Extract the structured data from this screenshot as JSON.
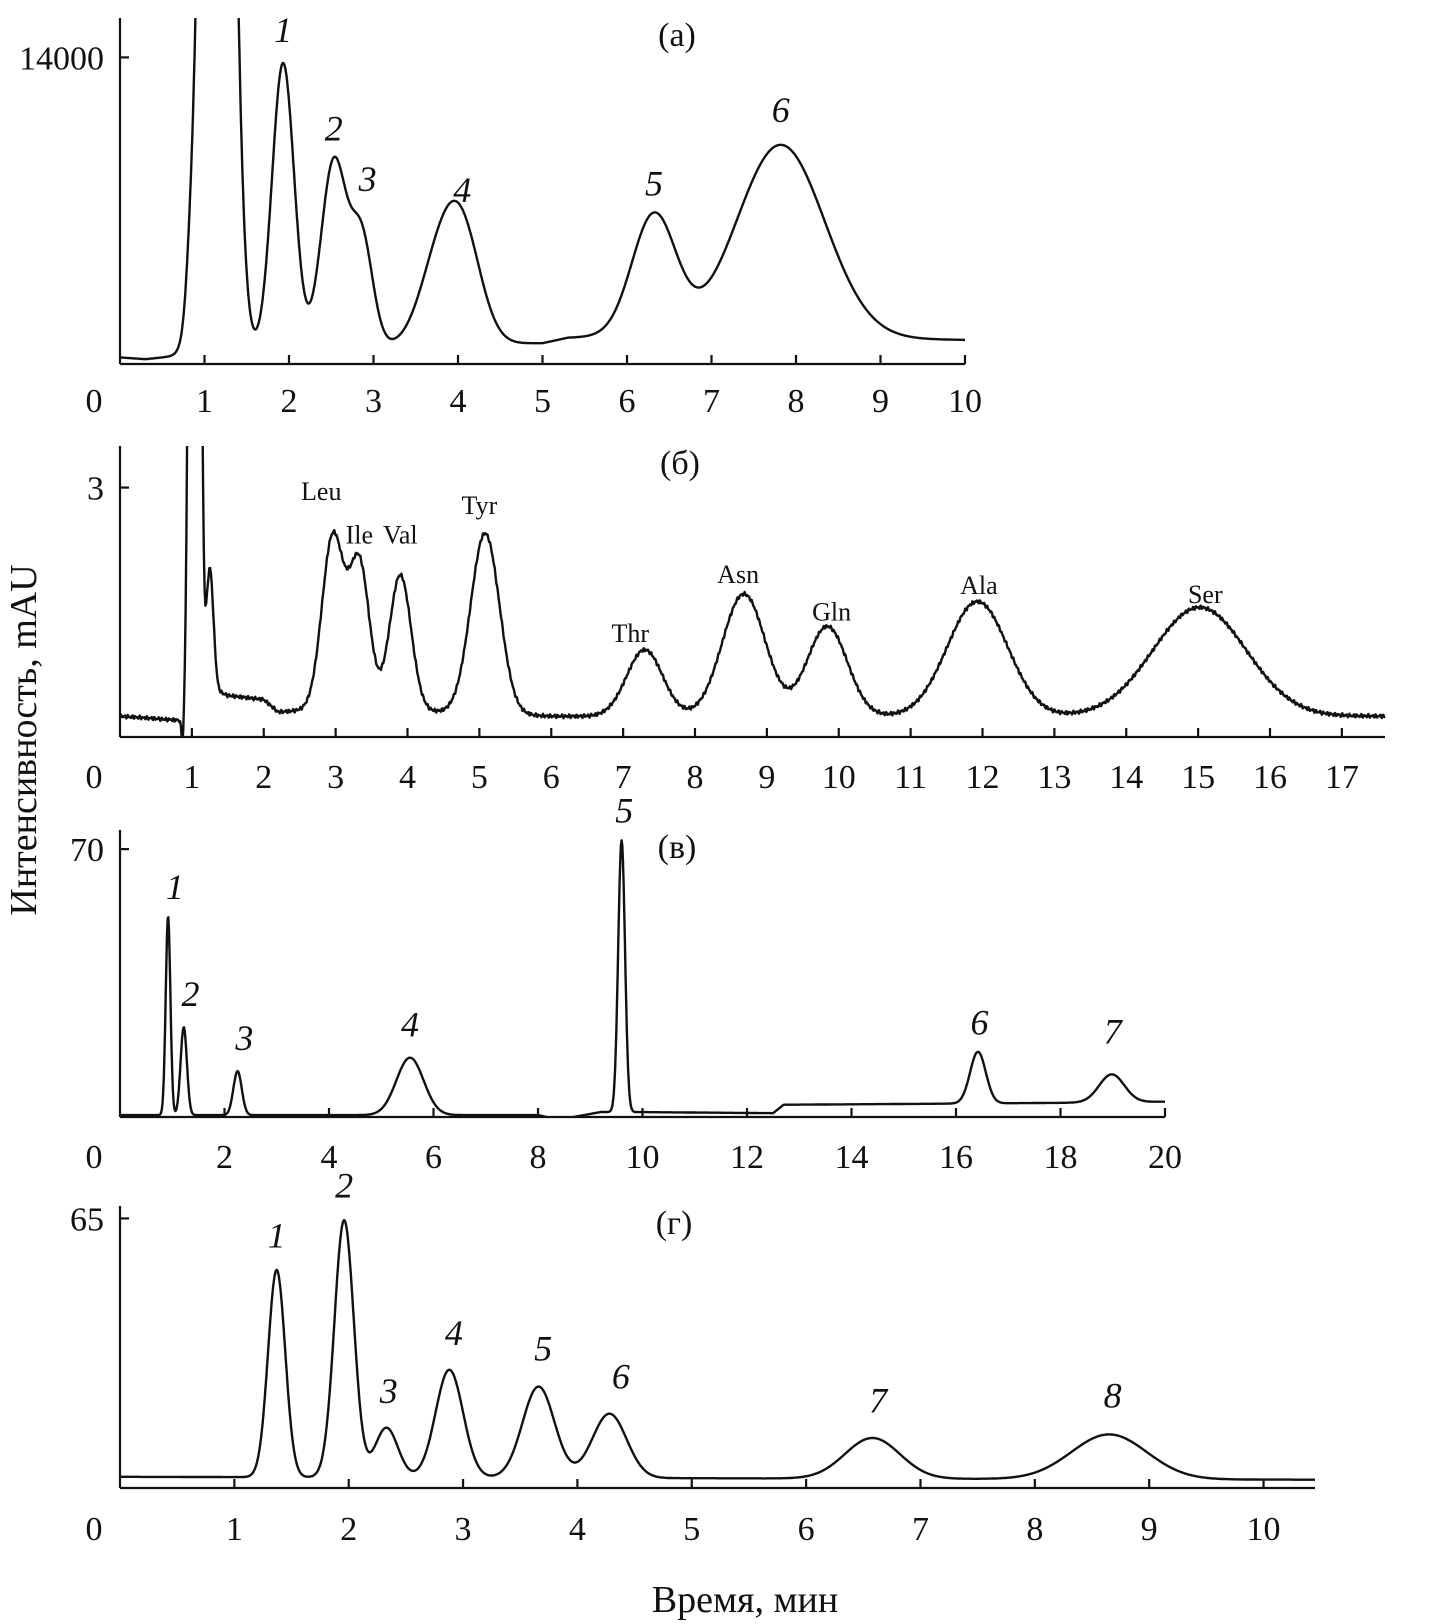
{
  "ylabel": "Интенсивность, mAU",
  "xlabel": "Время, мин",
  "chart_data": [
    {
      "type": "line",
      "panel_label": "(а)",
      "xlim": [
        0,
        10
      ],
      "ylim": [
        0,
        15800
      ],
      "x_ticks": [
        "0",
        "1",
        "2",
        "3",
        "4",
        "5",
        "6",
        "7",
        "8",
        "9",
        "10"
      ],
      "y_ticks": [
        {
          "value": 14000,
          "label": "14000"
        }
      ],
      "baseline": 300,
      "drift": [
        [
          0,
          0
        ],
        [
          0.3,
          -80
        ],
        [
          1.0,
          200
        ],
        [
          3.5,
          600
        ],
        [
          5.0,
          650
        ],
        [
          5.3,
          900
        ],
        [
          6.0,
          1000
        ],
        [
          10,
          800
        ]
      ],
      "peaks": [
        {
          "t": 0.83,
          "h": 1400,
          "w": 0.05
        },
        {
          "t": 1.15,
          "h": 80000,
          "w": 0.14
        },
        {
          "t": 1.93,
          "h": 13100,
          "w": 0.13
        },
        {
          "t": 2.53,
          "h": 8500,
          "w": 0.15
        },
        {
          "t": 2.86,
          "h": 4900,
          "w": 0.13
        },
        {
          "t": 3.75,
          "h": 3200,
          "w": 0.22
        },
        {
          "t": 4.05,
          "h": 4900,
          "w": 0.22
        },
        {
          "t": 6.32,
          "h": 5500,
          "w": 0.26
        },
        {
          "t": 7.82,
          "h": 8800,
          "w": 0.52
        }
      ],
      "annotations": [
        {
          "text": "1",
          "t": 1.93,
          "v": 14700
        },
        {
          "text": "2",
          "t": 2.53,
          "v": 10200
        },
        {
          "text": "3",
          "t": 2.93,
          "v": 7900
        },
        {
          "text": "4",
          "t": 4.05,
          "v": 7400
        },
        {
          "text": "5",
          "t": 6.32,
          "v": 7700
        },
        {
          "text": "6",
          "t": 7.82,
          "v": 11050
        }
      ]
    },
    {
      "type": "line",
      "panel_label": "(б)",
      "xlim": [
        0,
        17.6
      ],
      "ylim": [
        0,
        3.5
      ],
      "x_ticks": [
        "0",
        "1",
        "2",
        "3",
        "4",
        "5",
        "6",
        "7",
        "8",
        "9",
        "10",
        "11",
        "12",
        "13",
        "14",
        "15",
        "16",
        "17"
      ],
      "y_ticks": [
        {
          "value": 3,
          "label": "3"
        }
      ],
      "baseline": 0.25,
      "drift": [
        [
          0,
          0
        ],
        [
          0.85,
          -0.05
        ],
        [
          0.9,
          -0.05
        ],
        [
          1.2,
          0.35
        ],
        [
          1.5,
          0.25
        ],
        [
          2.0,
          0.2
        ],
        [
          2.2,
          0.05
        ],
        [
          3.0,
          0.1
        ],
        [
          6.0,
          0.0
        ],
        [
          9.0,
          0.0
        ],
        [
          13.0,
          0.0
        ],
        [
          17.6,
          0.0
        ]
      ],
      "peaks": [
        {
          "t": 0.87,
          "h": -0.3,
          "w": 0.015
        },
        {
          "t": 0.98,
          "h": 8.0,
          "w": 0.035
        },
        {
          "t": 1.1,
          "h": 8.0,
          "w": 0.035
        },
        {
          "t": 1.25,
          "h": 1.45,
          "w": 0.05
        },
        {
          "t": 2.96,
          "h": 2.06,
          "w": 0.15
        },
        {
          "t": 3.33,
          "h": 1.75,
          "w": 0.14
        },
        {
          "t": 3.9,
          "h": 1.63,
          "w": 0.15
        },
        {
          "t": 5.08,
          "h": 2.17,
          "w": 0.2
        },
        {
          "t": 7.3,
          "h": 0.8,
          "w": 0.25
        },
        {
          "t": 8.68,
          "h": 1.47,
          "w": 0.3
        },
        {
          "t": 9.84,
          "h": 1.08,
          "w": 0.28
        },
        {
          "t": 11.93,
          "h": 1.38,
          "w": 0.42
        },
        {
          "t": 15.02,
          "h": 1.31,
          "w": 0.65
        }
      ],
      "annotations": [
        {
          "text": "Leu",
          "t": 2.8,
          "v": 2.85
        },
        {
          "text": "Ile",
          "t": 3.33,
          "v": 2.33
        },
        {
          "text": "Val",
          "t": 3.9,
          "v": 2.33
        },
        {
          "text": "Tyr",
          "t": 5.0,
          "v": 2.68
        },
        {
          "text": "Thr",
          "t": 7.1,
          "v": 1.14
        },
        {
          "text": "Asn",
          "t": 8.6,
          "v": 1.85
        },
        {
          "text": "Gln",
          "t": 9.9,
          "v": 1.4
        },
        {
          "text": "Ala",
          "t": 11.95,
          "v": 1.72
        },
        {
          "text": "Ser",
          "t": 15.1,
          "v": 1.61
        }
      ]
    },
    {
      "type": "line",
      "panel_label": "(в)",
      "xlim": [
        0,
        20
      ],
      "ylim": [
        0,
        75
      ],
      "x_ticks": [
        "0",
        "2",
        "4",
        "6",
        "8",
        "10",
        "12",
        "14",
        "16",
        "18",
        "20"
      ],
      "y_ticks": [
        {
          "value": 70,
          "label": "70"
        }
      ],
      "baseline": 0.5,
      "drift": [
        [
          0,
          0
        ],
        [
          8.0,
          0
        ],
        [
          8.4,
          -1.2
        ],
        [
          9.2,
          0.8
        ],
        [
          9.8,
          0.8
        ],
        [
          12.5,
          0.5
        ],
        [
          12.7,
          2.7
        ],
        [
          16.0,
          3.0
        ],
        [
          18.0,
          3.2
        ],
        [
          20,
          3.5
        ]
      ],
      "peaks": [
        {
          "t": 0.92,
          "h": 52.0,
          "w": 0.045
        },
        {
          "t": 1.22,
          "h": 23.0,
          "w": 0.06
        },
        {
          "t": 2.25,
          "h": 11.5,
          "w": 0.08
        },
        {
          "t": 5.55,
          "h": 15.0,
          "w": 0.26
        },
        {
          "t": 9.6,
          "h": 71.0,
          "w": 0.065
        },
        {
          "t": 16.42,
          "h": 13.5,
          "w": 0.15
        },
        {
          "t": 18.98,
          "h": 7.3,
          "w": 0.24
        }
      ],
      "annotations": [
        {
          "text": "1",
          "t": 1.05,
          "v": 57.0
        },
        {
          "text": "2",
          "t": 1.35,
          "v": 29.0
        },
        {
          "text": "3",
          "t": 2.38,
          "v": 17.5
        },
        {
          "text": "4",
          "t": 5.55,
          "v": 21.0
        },
        {
          "text": "5",
          "t": 9.65,
          "v": 77.0
        },
        {
          "text": "6",
          "t": 16.45,
          "v": 21.5
        },
        {
          "text": "7",
          "t": 19.0,
          "v": 19.2
        }
      ]
    },
    {
      "type": "line",
      "panel_label": "(г)",
      "xlim": [
        0,
        10.45
      ],
      "ylim": [
        0,
        68
      ],
      "x_ticks": [
        "0",
        "1",
        "2",
        "3",
        "4",
        "5",
        "6",
        "7",
        "8",
        "9",
        "10"
      ],
      "y_ticks": [
        {
          "value": 65,
          "label": "65"
        }
      ],
      "baseline": 2.7,
      "drift": [
        [
          0,
          0
        ],
        [
          10.45,
          -0.7
        ]
      ],
      "peaks": [
        {
          "t": 1.37,
          "h": 50.0,
          "w": 0.075
        },
        {
          "t": 1.96,
          "h": 62.0,
          "w": 0.085
        },
        {
          "t": 2.33,
          "h": 12.0,
          "w": 0.1
        },
        {
          "t": 2.88,
          "h": 26.0,
          "w": 0.12
        },
        {
          "t": 3.66,
          "h": 22.0,
          "w": 0.14
        },
        {
          "t": 4.28,
          "h": 15.5,
          "w": 0.15
        },
        {
          "t": 6.58,
          "h": 9.8,
          "w": 0.24
        },
        {
          "t": 8.65,
          "h": 10.8,
          "w": 0.33
        }
      ],
      "annotations": [
        {
          "text": "1",
          "t": 1.37,
          "v": 58.0
        },
        {
          "text": "2",
          "t": 1.96,
          "v": 70.0
        },
        {
          "text": "3",
          "t": 2.35,
          "v": 20.5
        },
        {
          "text": "4",
          "t": 2.92,
          "v": 34.5
        },
        {
          "text": "5",
          "t": 3.7,
          "v": 30.8
        },
        {
          "text": "6",
          "t": 4.38,
          "v": 24.0
        },
        {
          "text": "7",
          "t": 6.63,
          "v": 18.2
        },
        {
          "text": "8",
          "t": 8.68,
          "v": 19.4
        }
      ]
    }
  ]
}
